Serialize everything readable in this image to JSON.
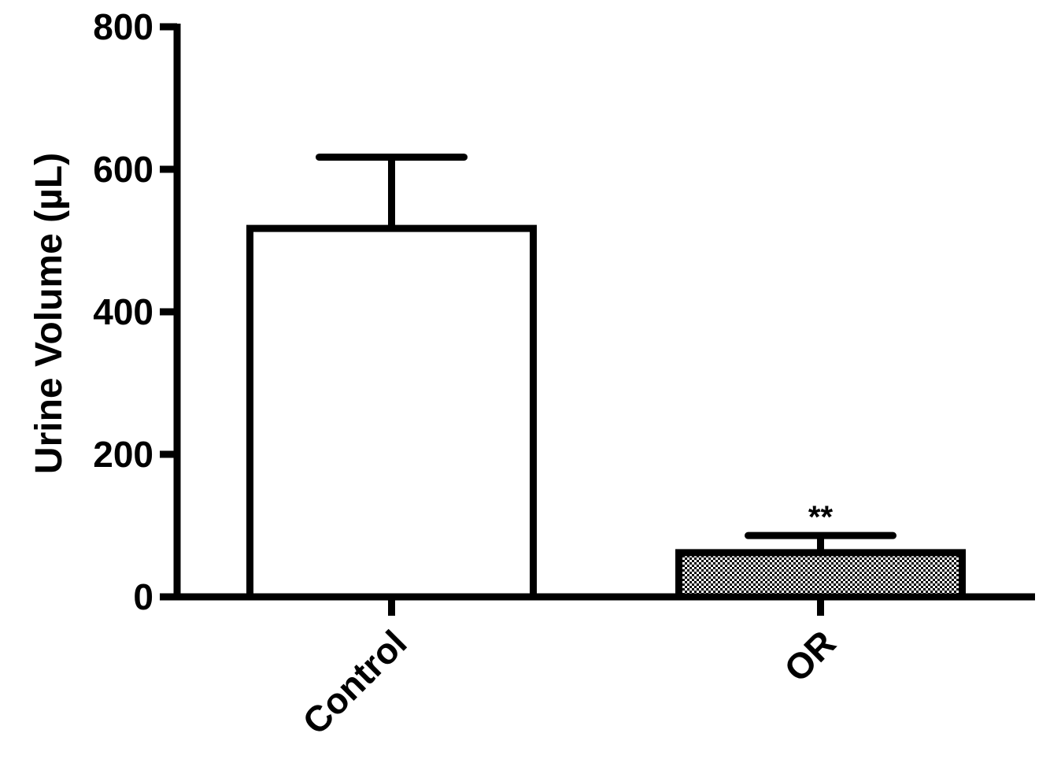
{
  "chart_data": {
    "type": "bar",
    "ylabel": "Urine Volume (µL)",
    "categories": [
      "Control",
      "OR"
    ],
    "values": [
      517,
      62
    ],
    "errors": [
      100,
      24
    ],
    "annotations": [
      null,
      "**"
    ],
    "colors": [
      "#ffffff",
      "#000000"
    ],
    "patterns": [
      null,
      "checker"
    ],
    "ylim": [
      0,
      800
    ],
    "yticks": [
      0,
      200,
      400,
      600,
      800
    ],
    "grid": false
  }
}
